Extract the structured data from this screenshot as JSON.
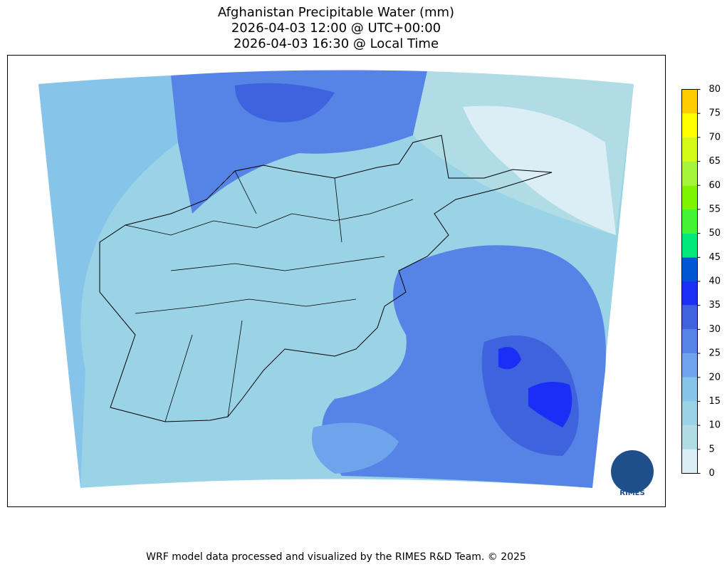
{
  "title": [
    "Afghanistan Precipitable Water (mm)",
    "2026-04-03 12:00 @ UTC+00:00",
    "2026-04-03 16:30 @ Local Time"
  ],
  "colorbar": {
    "levels": [
      0,
      5,
      10,
      15,
      20,
      25,
      30,
      35,
      40,
      45,
      50,
      55,
      60,
      65,
      70,
      75,
      80
    ],
    "colors": [
      "#dbeef6",
      "#b0dce6",
      "#9bd3e6",
      "#87c4ea",
      "#6ea4ec",
      "#5584e6",
      "#3f62dd",
      "#1a2ef5",
      "#0055d4",
      "#00e87a",
      "#44f236",
      "#7ef500",
      "#a6f53a",
      "#d4fb17",
      "#ffff00",
      "#ffcc00"
    ]
  },
  "logo": "RIMES",
  "footer": "WRF model data processed and visualized by the RIMES R&D Team. © 2025"
}
